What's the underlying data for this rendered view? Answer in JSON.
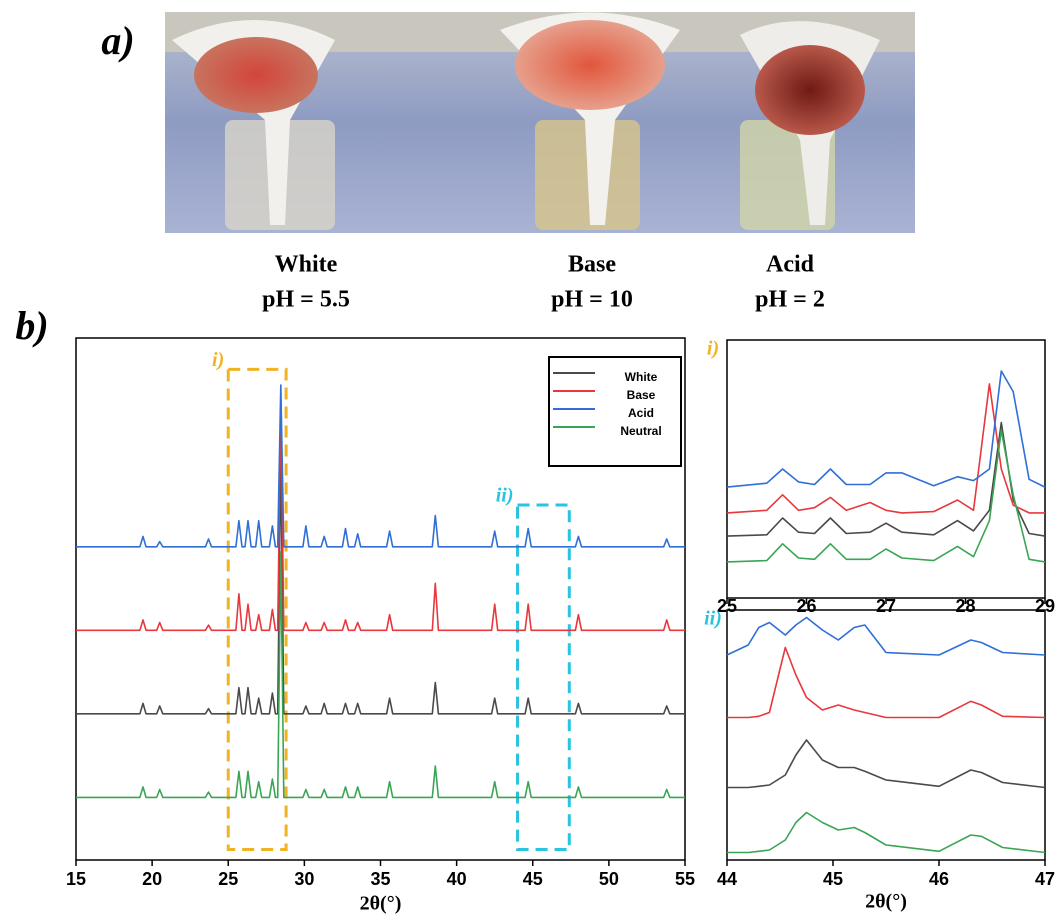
{
  "figure": {
    "panel_a_label": "a)",
    "panel_b_label": "b)",
    "photo_labels": [
      {
        "name": "White",
        "ph": "pH = 5.5"
      },
      {
        "name": "Base",
        "ph": "pH = 10"
      },
      {
        "name": "Acid",
        "ph": "pH = 2"
      }
    ]
  },
  "chart_data": [
    {
      "type": "line",
      "xlabel": "2θ(°)",
      "xlim": [
        15,
        55
      ],
      "xticks": [
        15,
        20,
        25,
        30,
        35,
        40,
        45,
        50,
        55
      ],
      "ylim": [
        0,
        100
      ],
      "legend": "upper right",
      "x": [
        15,
        19.2,
        19.4,
        19.6,
        20.3,
        20.5,
        20.7,
        23.5,
        23.7,
        23.9,
        25.5,
        25.7,
        25.9,
        26.1,
        26.3,
        26.5,
        26.8,
        27,
        27.2,
        27.7,
        27.9,
        28.1,
        28.25,
        28.45,
        28.65,
        29.9,
        30.1,
        30.3,
        31.1,
        31.3,
        31.5,
        32.5,
        32.7,
        32.9,
        33.3,
        33.5,
        33.7,
        35.4,
        35.6,
        35.8,
        38.4,
        38.6,
        38.8,
        42.3,
        42.5,
        42.7,
        44.5,
        44.7,
        44.9,
        47.8,
        48,
        48.2,
        53.6,
        53.8,
        54,
        55
      ],
      "series": [
        {
          "name": "White",
          "color": "#4a4a4a",
          "values": [
            28,
            28,
            30,
            28,
            28,
            29.5,
            28,
            28,
            29,
            28,
            28,
            33,
            28,
            28,
            33,
            28,
            28,
            31,
            28,
            28,
            32,
            28,
            28,
            78,
            28,
            28,
            29.5,
            28,
            28,
            30,
            28,
            28,
            30,
            28,
            28,
            30,
            28,
            28,
            31,
            28,
            28,
            34,
            28,
            28,
            31,
            28,
            28,
            31,
            28,
            28,
            30,
            28,
            28,
            29.5,
            28,
            28
          ]
        },
        {
          "name": "Base",
          "color": "#e8383d",
          "values": [
            44,
            44,
            46,
            44,
            44,
            45.5,
            44,
            44,
            45,
            44,
            44,
            51,
            44,
            44,
            49,
            44,
            44,
            47,
            44,
            44,
            48,
            44,
            44,
            88,
            44,
            44,
            45.5,
            44,
            44,
            45.5,
            44,
            44,
            46,
            44,
            44,
            45.5,
            44,
            44,
            47,
            44,
            44,
            53,
            44,
            44,
            49,
            44,
            44,
            49,
            44,
            44,
            47,
            44,
            44,
            46,
            44,
            44
          ]
        },
        {
          "name": "Acid",
          "color": "#2f6fd6",
          "values": [
            60,
            60,
            62,
            60,
            60,
            61,
            60,
            60,
            61.5,
            60,
            60,
            65,
            60,
            60,
            65,
            60,
            60,
            65,
            60,
            60,
            64,
            60,
            60,
            91,
            60,
            60,
            64,
            60,
            60,
            62,
            60,
            60,
            63.5,
            60,
            60,
            62.5,
            60,
            60,
            63,
            60,
            60,
            66,
            60,
            60,
            63,
            60,
            60,
            63.5,
            60,
            60,
            62,
            60,
            60,
            61.5,
            60,
            60
          ]
        },
        {
          "name": "Neutral",
          "color": "#3aa655",
          "values": [
            12,
            12,
            14,
            12,
            12,
            13.5,
            12,
            12,
            13,
            12,
            12,
            17,
            12,
            12,
            17,
            12,
            12,
            15,
            12,
            12,
            15.5,
            12,
            12,
            59,
            12,
            12,
            13.5,
            12,
            12,
            13.5,
            12,
            12,
            14,
            12,
            12,
            14,
            12,
            12,
            15,
            12,
            12,
            18,
            12,
            12,
            15,
            12,
            12,
            15,
            12,
            12,
            14,
            12,
            12,
            13.5,
            12,
            12
          ]
        }
      ],
      "highlights": [
        {
          "label": "i)",
          "x": [
            25,
            28.8
          ],
          "y": [
            2,
            94
          ],
          "color": "#f0b323"
        },
        {
          "label": "ii)",
          "x": [
            44,
            47.4
          ],
          "y": [
            2,
            68
          ],
          "color": "#2ac3e0"
        }
      ]
    },
    {
      "type": "line",
      "title": "i)",
      "title_color": "#f0b323",
      "xlim": [
        25,
        29
      ],
      "xticks": [
        25,
        26,
        27,
        28,
        29
      ],
      "ylim": [
        0,
        100
      ],
      "x": [
        25,
        25.5,
        25.7,
        25.9,
        26.1,
        26.3,
        26.5,
        26.8,
        27,
        27.2,
        27.6,
        27.9,
        28.1,
        28.3,
        28.45,
        28.6,
        28.8,
        29
      ],
      "series": [
        {
          "color": "#4a4a4a",
          "values": [
            24,
            24.5,
            31,
            25.5,
            25,
            31,
            25,
            25.5,
            29,
            25.5,
            24.5,
            30,
            26,
            34,
            68,
            38,
            25,
            24
          ]
        },
        {
          "color": "#e8383d",
          "values": [
            33,
            34,
            40,
            34,
            35,
            39,
            34,
            37,
            34,
            33,
            33.5,
            38,
            34,
            83,
            50,
            36,
            33,
            33
          ]
        },
        {
          "color": "#2f6fd6",
          "values": [
            43,
            44.5,
            50,
            45,
            44,
            50,
            44,
            44,
            48.5,
            48.5,
            43.5,
            47,
            45.5,
            50,
            88,
            80,
            46,
            43
          ]
        },
        {
          "color": "#3aa655",
          "values": [
            14,
            14.5,
            21,
            15.5,
            15,
            21,
            15,
            15,
            19,
            15.5,
            14.5,
            20,
            16,
            30,
            65,
            40,
            15,
            14
          ]
        }
      ]
    },
    {
      "type": "line",
      "title": "ii)",
      "title_color": "#2ac3e0",
      "xlabel": "2θ(°)",
      "xlim": [
        44,
        47
      ],
      "xticks": [
        44,
        45,
        46,
        47
      ],
      "ylim": [
        0,
        100
      ],
      "x": [
        44,
        44.2,
        44.3,
        44.4,
        44.55,
        44.65,
        44.75,
        44.9,
        45.05,
        45.2,
        45.3,
        45.5,
        46,
        46.3,
        46.4,
        46.6,
        47
      ],
      "series": [
        {
          "color": "#4a4a4a",
          "values": [
            29,
            29,
            29.5,
            30,
            34,
            42,
            48,
            40,
            37,
            37,
            35.5,
            32,
            29.5,
            36,
            35,
            31,
            29
          ]
        },
        {
          "color": "#e8383d",
          "values": [
            57,
            57,
            57.5,
            59,
            85,
            74,
            65,
            60,
            62,
            60,
            59,
            57,
            57,
            63.5,
            62,
            57.5,
            57
          ]
        },
        {
          "color": "#2f6fd6",
          "values": [
            82,
            86,
            93,
            95,
            90,
            94,
            97,
            92,
            88,
            93,
            94,
            83,
            82,
            88,
            87,
            83,
            82
          ]
        },
        {
          "color": "#3aa655",
          "values": [
            3,
            3,
            3.5,
            4,
            8,
            15,
            19,
            15,
            12,
            13,
            11,
            6,
            3.5,
            10,
            9.5,
            5,
            3
          ]
        }
      ]
    }
  ]
}
